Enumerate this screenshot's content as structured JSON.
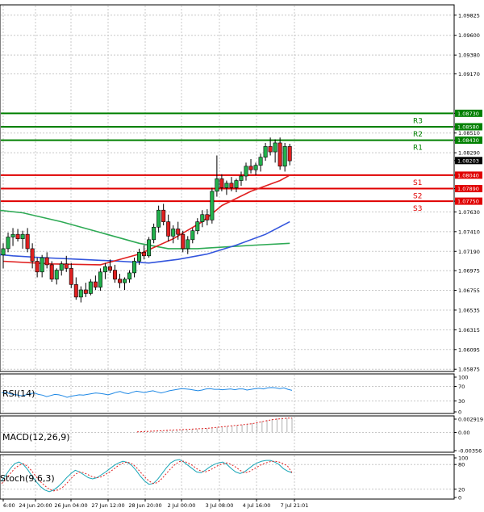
{
  "chart_data": [
    {
      "type": "candlestick",
      "y_ticks": [
        "1.09825",
        "1.09600",
        "1.09380",
        "1.09170",
        "1.08730",
        "1.08580",
        "1.08510",
        "1.08430",
        "1.08290",
        "1.08203",
        "1.08040",
        "1.07890",
        "1.07750",
        "1.07630",
        "1.07410",
        "1.07190",
        "1.06975",
        "1.06755",
        "1.06535",
        "1.06315",
        "1.06095",
        "1.05875"
      ],
      "x_ticks": [
        "6:00",
        "24 Jun 20:00",
        "26 Jun 04:00",
        "27 Jun 12:00",
        "28 Jun 20:00",
        "2 Jul 00:00",
        "3 Jul 08:00",
        "4 Jul 16:00",
        "7 Jul 21:01"
      ],
      "ylim": [
        1.0585,
        1.0994
      ],
      "current_price": "1.08203",
      "levels": [
        {
          "name": "R3",
          "value": "1.08730",
          "color": "#008000"
        },
        {
          "name": "R2",
          "value": "1.08580",
          "color": "#008000"
        },
        {
          "name": "R1",
          "value": "1.08430",
          "color": "#008000"
        },
        {
          "name": "S1",
          "value": "1.08040",
          "color": "#e00000"
        },
        {
          "name": "S2",
          "value": "1.07890",
          "color": "#e00000"
        },
        {
          "name": "S3",
          "value": "1.07750",
          "color": "#e00000"
        }
      ],
      "candles": [
        [
          1.0715,
          1.0728,
          1.07,
          1.0722
        ],
        [
          1.0722,
          1.074,
          1.0718,
          1.0735
        ],
        [
          1.0735,
          1.0745,
          1.0725,
          1.0738
        ],
        [
          1.0738,
          1.0744,
          1.073,
          1.0733
        ],
        [
          1.0733,
          1.0742,
          1.0722,
          1.0738
        ],
        [
          1.0738,
          1.0745,
          1.0718,
          1.0722
        ],
        [
          1.0722,
          1.0728,
          1.07,
          1.0708
        ],
        [
          1.0708,
          1.0712,
          1.069,
          1.0696
        ],
        [
          1.0696,
          1.0715,
          1.069,
          1.0712
        ],
        [
          1.0712,
          1.0718,
          1.07,
          1.0704
        ],
        [
          1.0704,
          1.0708,
          1.0685,
          1.0688
        ],
        [
          1.0688,
          1.07,
          1.0682,
          1.0698
        ],
        [
          1.0698,
          1.0708,
          1.0692,
          1.0705
        ],
        [
          1.0705,
          1.0714,
          1.0696,
          1.07
        ],
        [
          1.07,
          1.0706,
          1.0678,
          1.0682
        ],
        [
          1.0682,
          1.069,
          1.0665,
          1.0668
        ],
        [
          1.0668,
          1.068,
          1.0662,
          1.0676
        ],
        [
          1.0676,
          1.0684,
          1.0668,
          1.0672
        ],
        [
          1.0672,
          1.0688,
          1.067,
          1.0685
        ],
        [
          1.0685,
          1.0692,
          1.0676,
          1.0679
        ],
        [
          1.0679,
          1.07,
          1.0675,
          1.0696
        ],
        [
          1.0696,
          1.0706,
          1.0688,
          1.0702
        ],
        [
          1.0702,
          1.071,
          1.0695,
          1.0698
        ],
        [
          1.0698,
          1.0704,
          1.0684,
          1.0688
        ],
        [
          1.0688,
          1.0694,
          1.0678,
          1.0684
        ],
        [
          1.0684,
          1.069,
          1.0676,
          1.0688
        ],
        [
          1.0688,
          1.0698,
          1.0684,
          1.0695
        ],
        [
          1.0695,
          1.0712,
          1.069,
          1.0708
        ],
        [
          1.0708,
          1.0722,
          1.0704,
          1.0718
        ],
        [
          1.0718,
          1.0726,
          1.071,
          1.0714
        ],
        [
          1.0714,
          1.0735,
          1.0712,
          1.0732
        ],
        [
          1.0732,
          1.075,
          1.0728,
          1.0746
        ],
        [
          1.0746,
          1.077,
          1.074,
          1.0765
        ],
        [
          1.0765,
          1.0772,
          1.0748,
          1.0752
        ],
        [
          1.0752,
          1.076,
          1.073,
          1.0736
        ],
        [
          1.0736,
          1.0748,
          1.0728,
          1.0744
        ],
        [
          1.0744,
          1.0752,
          1.0732,
          1.0738
        ],
        [
          1.0738,
          1.0742,
          1.0718,
          1.0722
        ],
        [
          1.0722,
          1.0736,
          1.0716,
          1.0732
        ],
        [
          1.0732,
          1.0745,
          1.0728,
          1.0742
        ],
        [
          1.0742,
          1.0756,
          1.0738,
          1.0752
        ],
        [
          1.0752,
          1.0765,
          1.0746,
          1.076
        ],
        [
          1.076,
          1.0766,
          1.0748,
          1.0754
        ],
        [
          1.0754,
          1.079,
          1.075,
          1.0786
        ],
        [
          1.0786,
          1.0826,
          1.078,
          1.08
        ],
        [
          1.08,
          1.0805,
          1.0786,
          1.079
        ],
        [
          1.079,
          1.0798,
          1.0782,
          1.0795
        ],
        [
          1.0795,
          1.0802,
          1.0786,
          1.079
        ],
        [
          1.079,
          1.08,
          1.0785,
          1.0798
        ],
        [
          1.0798,
          1.0808,
          1.0792,
          1.0803
        ],
        [
          1.0803,
          1.0818,
          1.0798,
          1.0814
        ],
        [
          1.0814,
          1.0822,
          1.0806,
          1.081
        ],
        [
          1.081,
          1.0818,
          1.0804,
          1.0815
        ],
        [
          1.0815,
          1.0828,
          1.0808,
          1.0824
        ],
        [
          1.0824,
          1.084,
          1.082,
          1.0836
        ],
        [
          1.0836,
          1.0846,
          1.0826,
          1.083
        ],
        [
          1.083,
          1.0844,
          1.0818,
          1.084
        ],
        [
          1.084,
          1.0846,
          1.081,
          1.0814
        ],
        [
          1.0814,
          1.084,
          1.0808,
          1.0836
        ],
        [
          1.0836,
          1.0839,
          1.0815,
          1.082
        ]
      ],
      "ma_red": [
        [
          0,
          1.0708
        ],
        [
          10,
          1.0705
        ],
        [
          20,
          1.0704
        ],
        [
          28,
          1.0716
        ],
        [
          35,
          1.0733
        ],
        [
          41,
          1.0752
        ],
        [
          45,
          1.077
        ],
        [
          51,
          1.0786
        ],
        [
          57,
          1.0798
        ],
        [
          59,
          1.0804
        ]
      ],
      "ma_green": [
        [
          -6,
          1.0768
        ],
        [
          4,
          1.0762
        ],
        [
          12,
          1.0752
        ],
        [
          20,
          1.074
        ],
        [
          28,
          1.0728
        ],
        [
          34,
          1.0722
        ],
        [
          40,
          1.0722
        ],
        [
          46,
          1.0724
        ],
        [
          52,
          1.0726
        ],
        [
          59,
          1.0728
        ]
      ],
      "ma_blue": [
        [
          -6,
          1.0718
        ],
        [
          2,
          1.0714
        ],
        [
          8,
          1.0712
        ],
        [
          16,
          1.071
        ],
        [
          24,
          1.0708
        ],
        [
          30,
          1.0706
        ],
        [
          36,
          1.071
        ],
        [
          42,
          1.0716
        ],
        [
          48,
          1.0726
        ],
        [
          54,
          1.0738
        ],
        [
          59,
          1.0752
        ]
      ],
      "rsi": {
        "label": "RSI(14)",
        "ticks": [
          "100",
          "70",
          "30",
          "0"
        ],
        "values": [
          52,
          54,
          50,
          48,
          46,
          44,
          47,
          50,
          52,
          48,
          46,
          42,
          45,
          48,
          47,
          44,
          40,
          43,
          45,
          47,
          46,
          48,
          50,
          52,
          51,
          49,
          47,
          50,
          54,
          56,
          52,
          50,
          54,
          57,
          55,
          53,
          56,
          58,
          55,
          52,
          55,
          58,
          60,
          62,
          64,
          63,
          62,
          60,
          58,
          60,
          63,
          64,
          62,
          62,
          61,
          62,
          63,
          61,
          63,
          63,
          60,
          62,
          64,
          65,
          63,
          66,
          67,
          66,
          64,
          66,
          62,
          59
        ]
      },
      "macd": {
        "label": "MACD(12,26,9)",
        "ticks": [
          "0.002919",
          "0.00",
          "-0.00356"
        ],
        "values": [
          5e-05,
          0.0001,
          0.00015,
          0.0002,
          0.00025,
          0.0003,
          0.00035,
          0.0004,
          0.00045,
          0.0005,
          0.00055,
          0.0006,
          0.00065,
          0.0007,
          0.0008,
          0.0009,
          0.001,
          0.0011,
          0.0012,
          0.0013,
          0.0014,
          0.0015,
          0.0016,
          0.0018,
          0.002,
          0.0022,
          0.0024,
          0.0026,
          0.0028,
          0.0029,
          0.0029,
          0.00292
        ],
        "signal": [
          0.0001,
          0.00015,
          0.0002,
          0.00025,
          0.0003,
          0.00035,
          0.0004,
          0.00045,
          0.0005,
          0.00055,
          0.0006,
          0.00065,
          0.0007,
          0.00075,
          0.0008,
          0.0009,
          0.001,
          0.0011,
          0.0012,
          0.0013,
          0.0014,
          0.0015,
          0.0016,
          0.0017,
          0.0019,
          0.0021,
          0.0023,
          0.0025,
          0.0026,
          0.0027,
          0.0028,
          0.0028
        ]
      },
      "stoch": {
        "label": "Stoch(9,6,3)",
        "ticks": [
          "100",
          "80",
          "20",
          "0"
        ],
        "main": [
          40,
          55,
          70,
          82,
          86,
          80,
          68,
          52,
          38,
          26,
          18,
          14,
          18,
          26,
          36,
          48,
          58,
          66,
          62,
          55,
          48,
          45,
          48,
          55,
          62,
          70,
          78,
          84,
          88,
          85,
          78,
          66,
          52,
          40,
          32,
          34,
          44,
          58,
          72,
          84,
          90,
          92,
          86,
          78,
          70,
          62,
          60,
          66,
          74,
          80,
          84,
          86,
          80,
          70,
          62,
          58,
          62,
          70,
          78,
          84,
          88,
          90,
          90,
          86,
          80,
          70,
          64,
          60
        ],
        "signal": [
          34,
          44,
          58,
          70,
          78,
          82,
          76,
          64,
          50,
          38,
          28,
          20,
          16,
          18,
          24,
          34,
          46,
          56,
          62,
          60,
          55,
          50,
          48,
          50,
          56,
          62,
          70,
          78,
          84,
          86,
          82,
          74,
          62,
          50,
          40,
          34,
          36,
          46,
          58,
          70,
          80,
          87,
          88,
          84,
          78,
          70,
          64,
          62,
          66,
          72,
          78,
          82,
          84,
          80,
          74,
          66,
          60,
          62,
          68,
          74,
          80,
          84,
          87,
          88,
          86,
          82,
          76,
          60
        ]
      }
    }
  ]
}
